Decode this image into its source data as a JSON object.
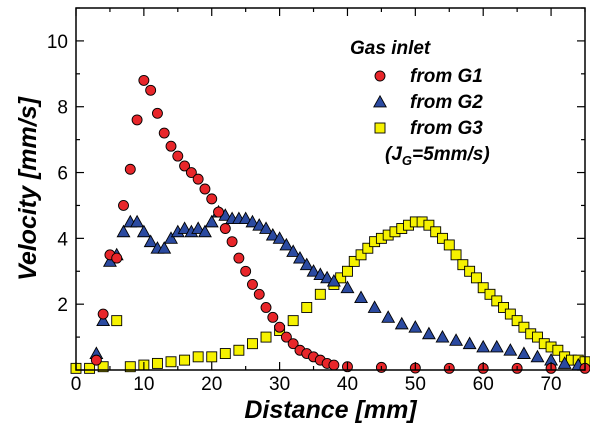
{
  "chart_data": {
    "type": "scatter",
    "xlabel": "Distance [mm]",
    "ylabel": "Velocity [mm/s]",
    "xlim": [
      0,
      75
    ],
    "ylim": [
      0,
      11
    ],
    "xticks": [
      "0",
      "10",
      "20",
      "30",
      "40",
      "50",
      "60",
      "70"
    ],
    "yticks": [
      "2",
      "4",
      "6",
      "8",
      "10"
    ],
    "grid": false,
    "legend": {
      "title": "Gas inlet",
      "placement": "top-right",
      "note": "(J",
      "note_sub": "G",
      "note_tail": "=5mm/s)"
    },
    "series": [
      {
        "name": "from G1",
        "marker": "circle",
        "color": "#e8262a",
        "x": [
          3,
          4,
          5,
          6,
          7,
          8,
          9,
          10,
          11,
          12,
          13,
          14,
          15,
          16,
          17,
          18,
          19,
          20,
          21,
          22,
          23,
          24,
          25,
          26,
          27,
          28,
          29,
          30,
          31,
          32,
          33,
          34,
          35,
          36,
          37,
          38,
          40,
          45,
          50,
          55,
          60,
          65,
          70,
          75
        ],
        "values": [
          0.3,
          1.7,
          3.5,
          3.4,
          5.0,
          6.1,
          7.6,
          8.8,
          8.5,
          7.8,
          7.2,
          6.8,
          6.5,
          6.2,
          6.0,
          5.8,
          5.5,
          5.2,
          4.8,
          4.3,
          3.9,
          3.4,
          3.0,
          2.6,
          2.3,
          1.9,
          1.6,
          1.3,
          1.0,
          0.8,
          0.6,
          0.5,
          0.4,
          0.3,
          0.2,
          0.15,
          0.1,
          0.08,
          0.06,
          0.05,
          0.05,
          0.05,
          0.05,
          0.05
        ]
      },
      {
        "name": "from G2",
        "marker": "triangle",
        "color": "#2b4aa0",
        "x": [
          3,
          4,
          5,
          6,
          7,
          8,
          9,
          10,
          11,
          12,
          13,
          14,
          15,
          16,
          17,
          18,
          19,
          20,
          21,
          22,
          23,
          24,
          25,
          26,
          27,
          28,
          29,
          30,
          31,
          32,
          33,
          34,
          35,
          36,
          37,
          38,
          40,
          42,
          44,
          46,
          48,
          50,
          52,
          54,
          56,
          58,
          60,
          62,
          64,
          66,
          68,
          70,
          72,
          74
        ],
        "values": [
          0.5,
          1.5,
          3.3,
          3.5,
          4.2,
          4.5,
          4.5,
          4.2,
          3.9,
          3.7,
          3.7,
          4.0,
          4.2,
          4.3,
          4.2,
          4.3,
          4.2,
          4.5,
          4.8,
          4.7,
          4.6,
          4.6,
          4.6,
          4.5,
          4.4,
          4.3,
          4.1,
          4.0,
          3.8,
          3.6,
          3.4,
          3.2,
          3.0,
          2.9,
          2.8,
          2.7,
          2.5,
          2.2,
          1.9,
          1.6,
          1.4,
          1.3,
          1.1,
          1.0,
          0.9,
          0.8,
          0.7,
          0.7,
          0.6,
          0.5,
          0.4,
          0.3,
          0.2,
          0.15
        ]
      },
      {
        "name": "from G3",
        "marker": "square",
        "color": "#f6f200",
        "x": [
          0,
          2,
          4,
          6,
          8,
          10,
          12,
          14,
          16,
          18,
          20,
          22,
          24,
          26,
          28,
          30,
          32,
          34,
          36,
          38,
          39,
          40,
          41,
          42,
          43,
          44,
          45,
          46,
          47,
          48,
          49,
          50,
          51,
          52,
          53,
          54,
          55,
          56,
          57,
          58,
          59,
          60,
          61,
          62,
          63,
          64,
          65,
          66,
          67,
          68,
          69,
          70,
          71,
          72,
          73,
          74,
          75
        ],
        "values": [
          0.05,
          0.05,
          0.1,
          1.5,
          0.1,
          0.15,
          0.2,
          0.25,
          0.3,
          0.4,
          0.4,
          0.5,
          0.6,
          0.8,
          1.0,
          1.2,
          1.5,
          1.9,
          2.3,
          2.6,
          2.8,
          3.0,
          3.3,
          3.5,
          3.7,
          3.9,
          4.0,
          4.1,
          4.2,
          4.3,
          4.4,
          4.5,
          4.5,
          4.4,
          4.2,
          4.0,
          3.8,
          3.5,
          3.2,
          3.0,
          2.8,
          2.5,
          2.3,
          2.1,
          1.9,
          1.7,
          1.5,
          1.3,
          1.1,
          1.0,
          0.8,
          0.7,
          0.6,
          0.4,
          0.3,
          0.3,
          0.25
        ]
      }
    ]
  }
}
